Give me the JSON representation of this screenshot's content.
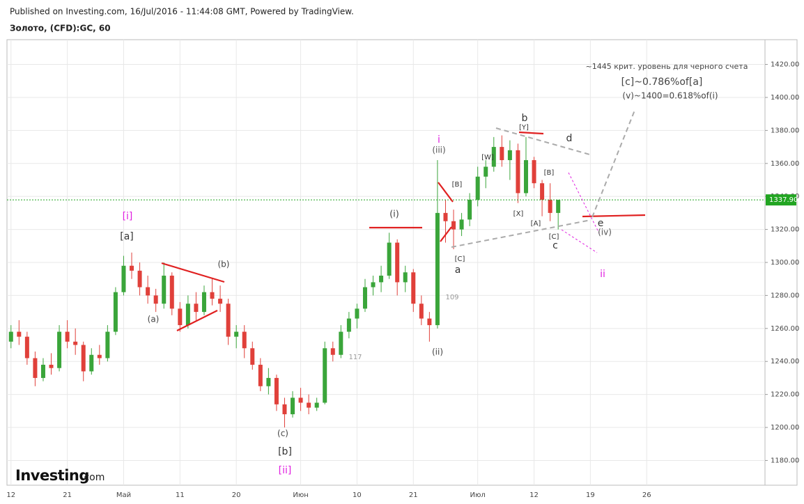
{
  "published": "Published on Investing.com, 16/Jul/2016 - 11:44:08 GMT, Powered by TradingView.",
  "logo": [
    "Investing",
    ".com"
  ],
  "chart_data": {
    "type": "candlestick",
    "title": "Золото, (CFD):GC, 60",
    "up_color": "#3aa53a",
    "down_color": "#e0403a",
    "categories": [
      "12",
      null,
      null,
      null,
      null,
      null,
      null,
      "21",
      null,
      null,
      null,
      null,
      null,
      null,
      "Май",
      null,
      null,
      null,
      null,
      null,
      null,
      "11",
      null,
      null,
      null,
      null,
      null,
      null,
      "20",
      null,
      null,
      null,
      null,
      null,
      null,
      null,
      "Июн",
      null,
      null,
      null,
      null,
      null,
      null,
      "10",
      null,
      null,
      null,
      null,
      null,
      null,
      "21",
      null,
      null,
      null,
      null,
      null,
      null,
      null,
      "Июл",
      null,
      null,
      null,
      null,
      null,
      null,
      "12",
      null,
      null,
      null,
      null,
      null,
      null,
      "19",
      null,
      null,
      null,
      null,
      null,
      null,
      "26",
      null,
      null,
      null,
      null,
      null,
      null,
      null,
      null,
      null,
      null,
      null,
      null,
      null,
      null
    ],
    "ohlc": [
      [
        1252,
        1262,
        1248,
        1258
      ],
      [
        1258,
        1265,
        1250,
        1255
      ],
      [
        1255,
        1258,
        1238,
        1242
      ],
      [
        1242,
        1246,
        1225,
        1230
      ],
      [
        1230,
        1242,
        1228,
        1238
      ],
      [
        1238,
        1245,
        1232,
        1236
      ],
      [
        1236,
        1262,
        1234,
        1258
      ],
      [
        1258,
        1265,
        1248,
        1252
      ],
      [
        1252,
        1260,
        1244,
        1250
      ],
      [
        1250,
        1252,
        1228,
        1234
      ],
      [
        1234,
        1248,
        1232,
        1244
      ],
      [
        1244,
        1250,
        1238,
        1242
      ],
      [
        1242,
        1262,
        1240,
        1258
      ],
      [
        1258,
        1285,
        1256,
        1282
      ],
      [
        1282,
        1304,
        1280,
        1298
      ],
      [
        1298,
        1306,
        1290,
        1295
      ],
      [
        1295,
        1300,
        1280,
        1285
      ],
      [
        1285,
        1292,
        1275,
        1280
      ],
      [
        1280,
        1284,
        1270,
        1275
      ],
      [
        1275,
        1300,
        1272,
        1292
      ],
      [
        1292,
        1294,
        1268,
        1272
      ],
      [
        1272,
        1276,
        1258,
        1262
      ],
      [
        1262,
        1280,
        1260,
        1275
      ],
      [
        1275,
        1282,
        1265,
        1270
      ],
      [
        1270,
        1286,
        1268,
        1282
      ],
      [
        1282,
        1290,
        1274,
        1278
      ],
      [
        1278,
        1286,
        1270,
        1275
      ],
      [
        1275,
        1278,
        1250,
        1255
      ],
      [
        1255,
        1262,
        1248,
        1258
      ],
      [
        1258,
        1262,
        1242,
        1248
      ],
      [
        1248,
        1252,
        1235,
        1238
      ],
      [
        1238,
        1242,
        1222,
        1225
      ],
      [
        1225,
        1236,
        1220,
        1230
      ],
      [
        1230,
        1232,
        1210,
        1214
      ],
      [
        1214,
        1218,
        1200,
        1208
      ],
      [
        1208,
        1222,
        1206,
        1218
      ],
      [
        1218,
        1224,
        1210,
        1215
      ],
      [
        1215,
        1220,
        1208,
        1212
      ],
      [
        1212,
        1218,
        1210,
        1215
      ],
      [
        1215,
        1252,
        1214,
        1248
      ],
      [
        1248,
        1252,
        1240,
        1244
      ],
      [
        1244,
        1262,
        1242,
        1258
      ],
      [
        1258,
        1270,
        1254,
        1266
      ],
      [
        1266,
        1275,
        1260,
        1272
      ],
      [
        1272,
        1290,
        1270,
        1285
      ],
      [
        1285,
        1292,
        1280,
        1288
      ],
      [
        1288,
        1298,
        1282,
        1292
      ],
      [
        1292,
        1318,
        1290,
        1312
      ],
      [
        1312,
        1314,
        1280,
        1288
      ],
      [
        1288,
        1298,
        1282,
        1294
      ],
      [
        1294,
        1296,
        1270,
        1275
      ],
      [
        1275,
        1280,
        1262,
        1266
      ],
      [
        1266,
        1270,
        1252,
        1262
      ],
      [
        1262,
        1362,
        1260,
        1330
      ],
      [
        1330,
        1338,
        1312,
        1325
      ],
      [
        1325,
        1332,
        1308,
        1320
      ],
      [
        1320,
        1330,
        1316,
        1326
      ],
      [
        1326,
        1342,
        1322,
        1338
      ],
      [
        1338,
        1358,
        1334,
        1352
      ],
      [
        1352,
        1362,
        1345,
        1358
      ],
      [
        1358,
        1376,
        1355,
        1370
      ],
      [
        1370,
        1377,
        1358,
        1362
      ],
      [
        1362,
        1374,
        1350,
        1368
      ],
      [
        1368,
        1372,
        1336,
        1342
      ],
      [
        1342,
        1376,
        1340,
        1362
      ],
      [
        1362,
        1364,
        1345,
        1348
      ],
      [
        1348,
        1350,
        1328,
        1338
      ],
      [
        1338,
        1348,
        1325,
        1330
      ],
      [
        1330,
        1338,
        1320,
        1337.9
      ]
    ],
    "last_price": {
      "value": 1337.9,
      "label": "1337.90"
    },
    "last_price_color": "#22a522",
    "ylim": [
      1165,
      1435
    ],
    "yticks": [
      {
        "value": 1180,
        "label": "1180.00"
      },
      {
        "value": 1200,
        "label": "1200.00"
      },
      {
        "value": 1220,
        "label": "1220.00"
      },
      {
        "value": 1240,
        "label": "1240.00"
      },
      {
        "value": 1260,
        "label": "1260.00"
      },
      {
        "value": 1280,
        "label": "1280.00"
      },
      {
        "value": 1300,
        "label": "1300.00"
      },
      {
        "value": 1320,
        "label": "1320.00"
      },
      {
        "value": 1340,
        "label": "1340.00"
      },
      {
        "value": 1360,
        "label": "1360.00"
      },
      {
        "value": 1380,
        "label": "1380.00"
      },
      {
        "value": 1400,
        "label": "1400.00"
      },
      {
        "value": 1420,
        "label": "1420.00"
      }
    ],
    "grid": true,
    "annotations": [
      {
        "text": "~1445 крит. уровень для черного счета",
        "color": "#444444"
      },
      {
        "text": "[c]~0.786%of[a]",
        "color": "#444444"
      },
      {
        "text": "(v)~1400=0.618%of(i)",
        "color": "#444444"
      },
      {
        "text": "b",
        "color": "#333333"
      },
      {
        "text": "[Y]",
        "color": "#333333"
      },
      {
        "text": "d",
        "color": "#333333"
      },
      {
        "text": "i",
        "color": "#e020e0"
      },
      {
        "text": "(iii)",
        "color": "#555555"
      },
      {
        "text": "[W]",
        "color": "#333333"
      },
      {
        "text": "[B]",
        "color": "#333333"
      },
      {
        "text": "[B]",
        "color": "#333333"
      },
      {
        "text": "[X]",
        "color": "#333333"
      },
      {
        "text": "[A]",
        "color": "#333333"
      },
      {
        "text": "[C]",
        "color": "#333333"
      },
      {
        "text": "c",
        "color": "#333333"
      },
      {
        "text": "e",
        "color": "#333333"
      },
      {
        "text": "(iv)",
        "color": "#555555"
      },
      {
        "text": "ii",
        "color": "#e020e0"
      },
      {
        "text": "[C]",
        "color": "#333333"
      },
      {
        "text": "a",
        "color": "#333333"
      },
      {
        "text": "(i)",
        "color": "#444444"
      },
      {
        "text": "[i]",
        "color": "#e020e0"
      },
      {
        "text": "[a]",
        "color": "#333333"
      },
      {
        "text": "(b)",
        "color": "#444444"
      },
      {
        "text": "(a)",
        "color": "#444444"
      },
      {
        "text": "109",
        "color": "#999999"
      },
      {
        "text": "117",
        "color": "#999999"
      },
      {
        "text": "(ii)",
        "color": "#444444"
      },
      {
        "text": "(c)",
        "color": "#444444"
      },
      {
        "text": "[b]",
        "color": "#333333"
      },
      {
        "text": "[ii]",
        "color": "#e020e0"
      }
    ]
  }
}
